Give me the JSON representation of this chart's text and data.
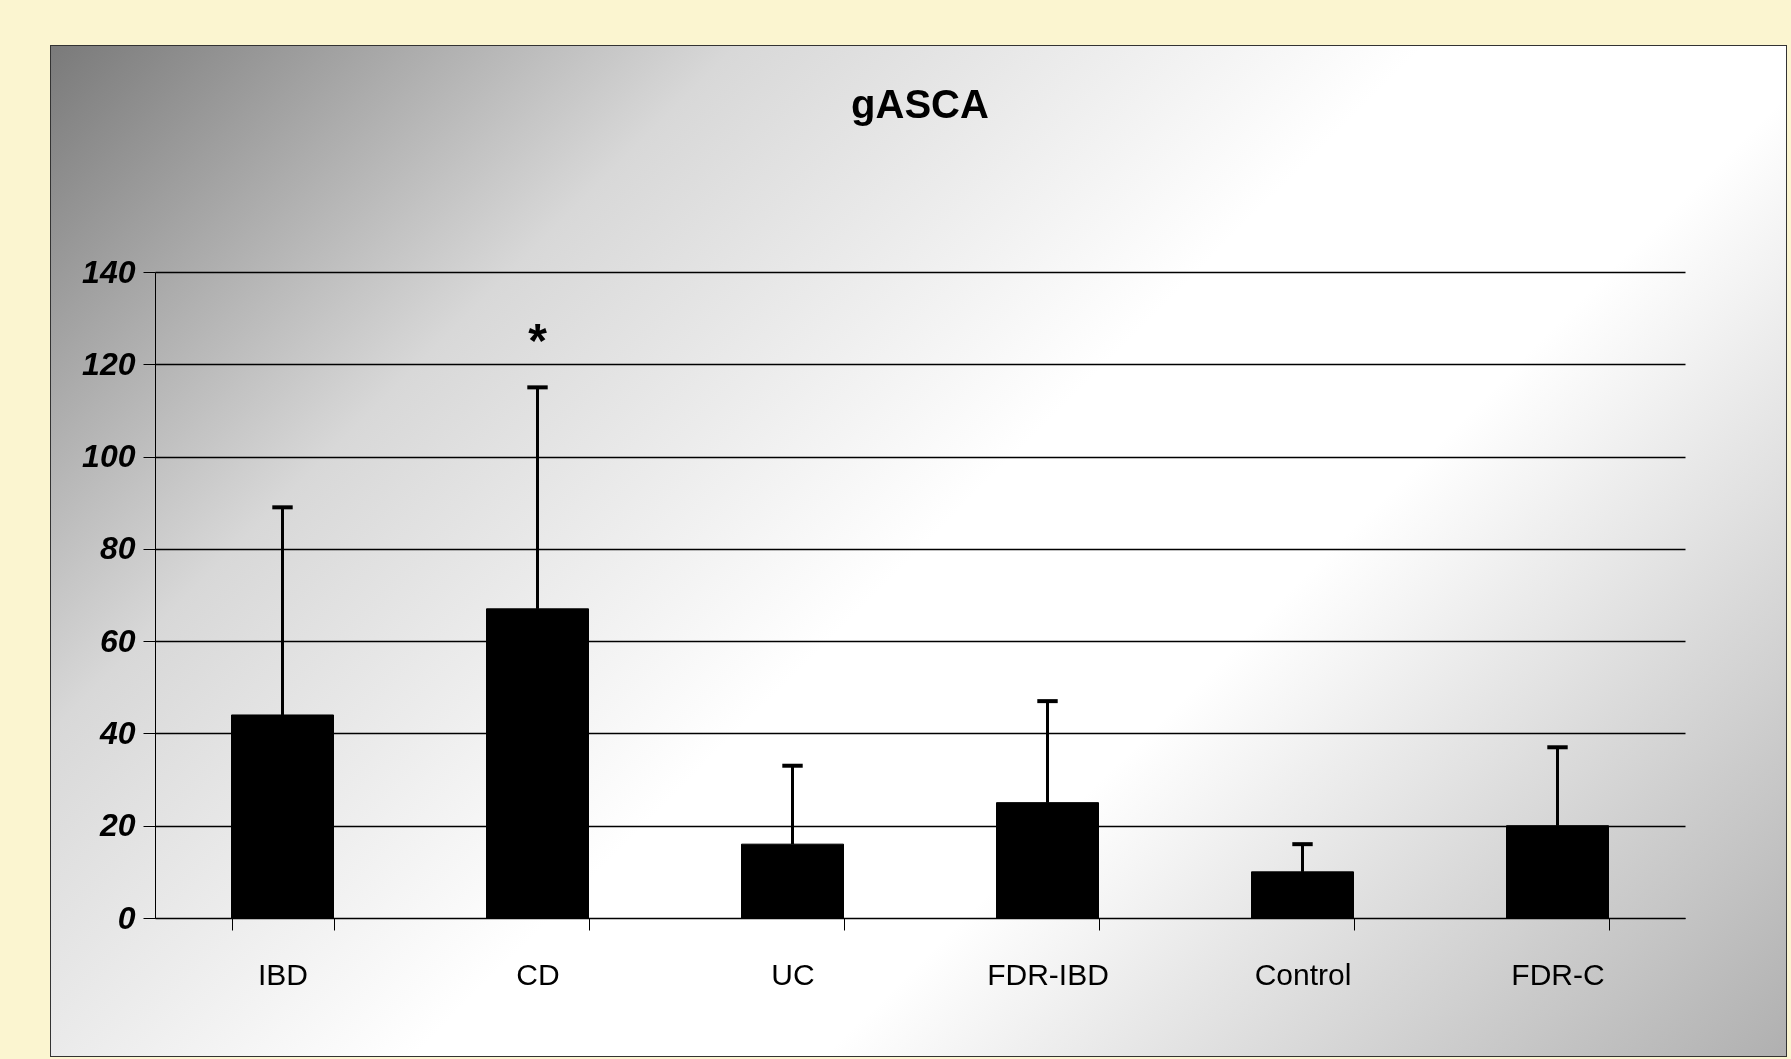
{
  "chart_data": {
    "type": "bar",
    "title": "gASCA",
    "categories": [
      "IBD",
      "CD",
      "UC",
      "FDR-IBD",
      "Control",
      "FDR-C"
    ],
    "values": [
      44,
      67,
      16,
      25,
      10,
      20
    ],
    "errors": [
      [
        44,
        89
      ],
      [
        67,
        115
      ],
      [
        16,
        33
      ],
      [
        25,
        47
      ],
      [
        10,
        16
      ],
      [
        20,
        37
      ]
    ],
    "color": "#000000",
    "ylim": [
      0,
      140
    ],
    "yticks": [
      0,
      20,
      40,
      60,
      80,
      100,
      120,
      140
    ],
    "grid": "y",
    "annotations": [
      "*"
    ]
  }
}
